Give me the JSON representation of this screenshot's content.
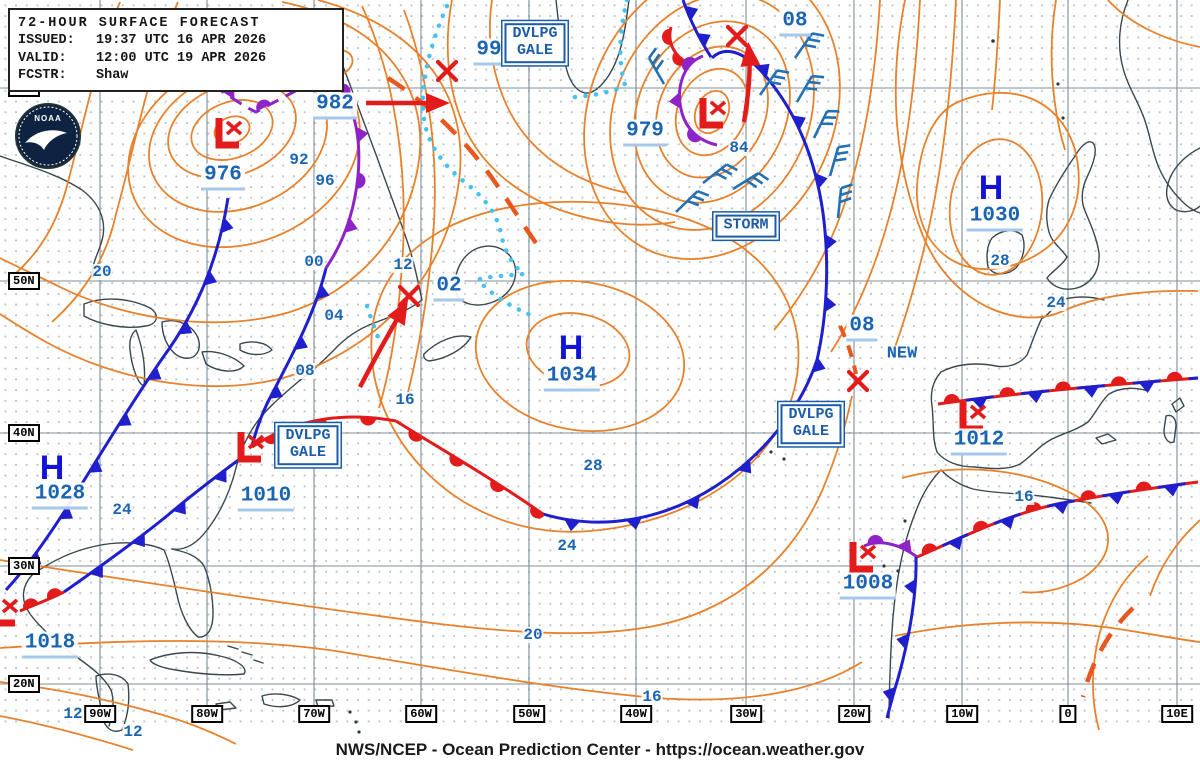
{
  "header": {
    "title": "72-HOUR SURFACE FORECAST",
    "issued_label": "ISSUED:",
    "issued": "19:37 UTC 16 APR 2026",
    "valid_label": "VALID:",
    "valid": "12:00 UTC 19 APR 2026",
    "fcstr_label": "FCSTR:",
    "fcstr": "Shaw"
  },
  "logo": {
    "text": "NOAA"
  },
  "footer": "NWS/NCEP - Ocean Prediction Center - https://ocean.weather.gov",
  "grid": {
    "lat": [
      "60N",
      "50N",
      "40N",
      "30N",
      "20N"
    ],
    "lon": [
      "90W",
      "80W",
      "70W",
      "60W",
      "50W",
      "40W",
      "30W",
      "20W",
      "10W",
      "0",
      "10E"
    ]
  },
  "highs": [
    {
      "symbol": "H",
      "value": "1028"
    },
    {
      "symbol": "H",
      "value": "1034"
    },
    {
      "symbol": "H",
      "value": "1030"
    }
  ],
  "lows": [
    {
      "symbol": "L",
      "value": "976"
    },
    {
      "symbol": "L",
      "value": "982"
    },
    {
      "symbol": "L",
      "value": "979"
    },
    {
      "symbol": "L",
      "value": "1010"
    },
    {
      "symbol": "L",
      "value": "1012"
    },
    {
      "symbol": "L",
      "value": "1008"
    },
    {
      "symbol": "L",
      "value": "1018"
    }
  ],
  "forecast_positions": [
    {
      "label": "99"
    },
    {
      "label": "08"
    },
    {
      "label": "02"
    },
    {
      "label": "08",
      "note": "NEW"
    }
  ],
  "warnings": [
    {
      "line1": "DVLPG",
      "line2": "GALE"
    },
    {
      "text": "STORM"
    },
    {
      "line1": "DVLPG",
      "line2": "GALE"
    },
    {
      "line1": "DVLPG",
      "line2": "GALE"
    }
  ],
  "isobar_labels": [
    "20",
    "92",
    "96",
    "00",
    "12",
    "04",
    "08",
    "16",
    "84",
    "28",
    "24",
    "28",
    "24",
    "24",
    "16",
    "20",
    "16",
    "12",
    "12"
  ],
  "colors": {
    "isobar": "#e8812b",
    "cold": "#1f1fce",
    "warm": "#e31b1b",
    "occl": "#8e24c8",
    "ice": "#45c2f0",
    "label": "#1a64b4",
    "symbol": "#1313d8",
    "warn": "#1a5ca8"
  }
}
